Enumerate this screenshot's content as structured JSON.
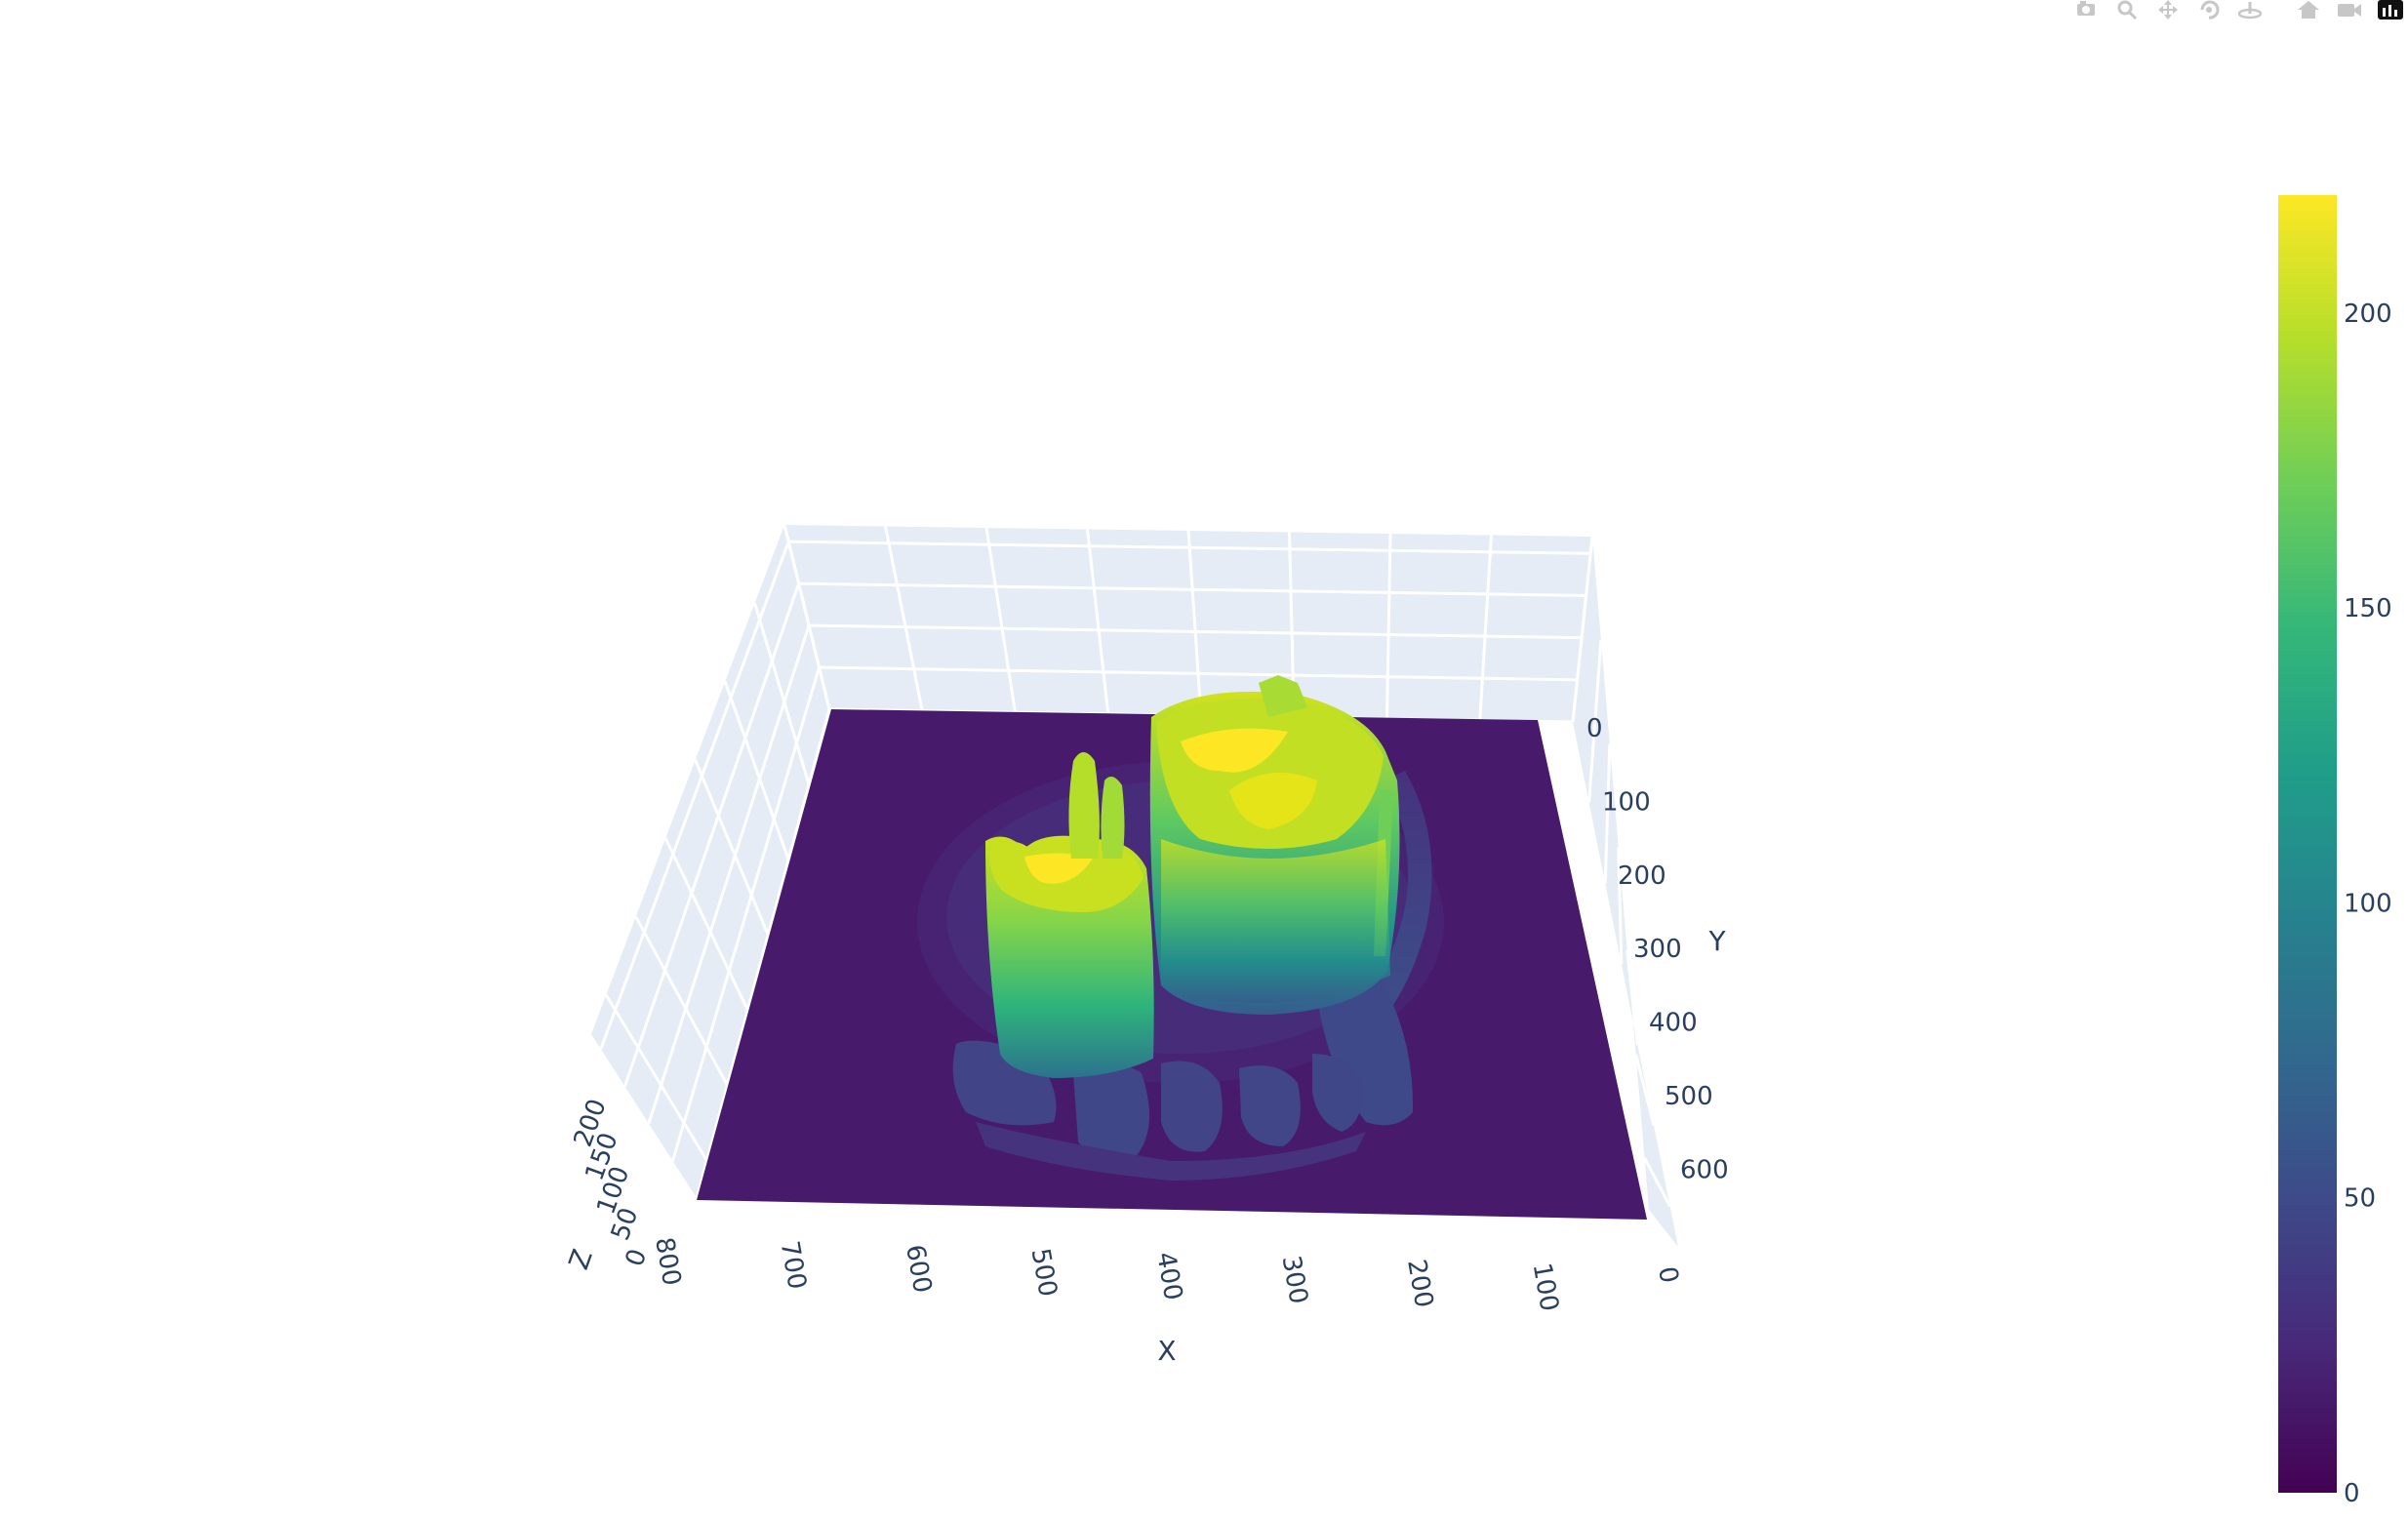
{
  "modebar": {
    "buttons": [
      {
        "name": "camera-icon",
        "label": "Download plot as a png"
      },
      {
        "name": "zoom-icon",
        "label": "Zoom"
      },
      {
        "name": "pan-icon",
        "label": "Pan"
      },
      {
        "name": "orbit-rotation-icon",
        "label": "Orbital rotation"
      },
      {
        "name": "turntable-rotation-icon",
        "label": "Turntable rotation"
      },
      {
        "name": "home-icon",
        "label": "Reset camera to default"
      },
      {
        "name": "camera-video-icon",
        "label": "Reset camera to last save"
      },
      {
        "name": "plotly-logo-icon",
        "label": "Produced with Plotly"
      }
    ]
  },
  "chart_data": {
    "type": "surface",
    "title": "",
    "colorscale": "Viridis",
    "colors": [
      "#440154",
      "#482878",
      "#3e4989",
      "#31688e",
      "#26828e",
      "#1f9e89",
      "#35b779",
      "#6ece58",
      "#b5de2b",
      "#fde725"
    ],
    "x_axis": {
      "title": "X",
      "range": [
        0,
        800
      ],
      "ticks": [
        "0",
        "100",
        "200",
        "300",
        "400",
        "500",
        "600",
        "700",
        "800"
      ]
    },
    "y_axis": {
      "title": "Y",
      "range": [
        0,
        650
      ],
      "ticks": [
        "0",
        "100",
        "200",
        "300",
        "400",
        "500",
        "600"
      ]
    },
    "z_axis": {
      "title": "Z",
      "range": [
        0,
        220
      ],
      "ticks": [
        "0",
        "50",
        "100",
        "150",
        "200"
      ]
    },
    "colorbar": {
      "range": [
        0,
        220
      ],
      "ticks": [
        "0",
        "50",
        "100",
        "150",
        "200"
      ]
    },
    "surface_features": [
      {
        "name": "base-plane",
        "z": 0
      },
      {
        "name": "left-tower",
        "x_range": [
          380,
          500
        ],
        "y_range": [
          200,
          560
        ],
        "z_max": 210
      },
      {
        "name": "right-tower",
        "x_range": [
          180,
          390
        ],
        "y_range": [
          0,
          390
        ],
        "z_max": 220
      },
      {
        "name": "ring-and-petals",
        "x_range": [
          170,
          520
        ],
        "y_range": [
          80,
          640
        ],
        "z_max": 60
      }
    ]
  }
}
